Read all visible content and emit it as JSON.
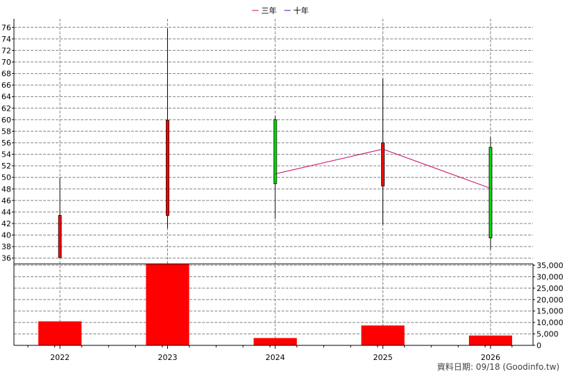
{
  "legend": [
    {
      "label": "三年",
      "color": "#cc0066"
    },
    {
      "label": "十年",
      "color": "#6600cc"
    }
  ],
  "footer": "資料日期: 09/18  (Goodinfo.tw)",
  "chart_data": [
    {
      "type": "candlestick",
      "categories": [
        "2022",
        "2023",
        "2024",
        "2025",
        "2026"
      ],
      "ylim": [
        35,
        77
      ],
      "yticks": [
        36,
        38,
        40,
        42,
        44,
        46,
        48,
        50,
        52,
        54,
        56,
        58,
        60,
        62,
        64,
        66,
        68,
        70,
        72,
        74,
        76
      ],
      "grid": true,
      "candles": [
        {
          "x": "2022",
          "open": 36.1,
          "close": 43.4,
          "high": 50.0,
          "low": 36.1,
          "color": "#ff0000"
        },
        {
          "x": "2023",
          "open": 43.4,
          "close": 59.9,
          "high": 75.8,
          "low": 41.2,
          "color": "#ff0000"
        },
        {
          "x": "2024",
          "open": 60.0,
          "close": 48.9,
          "high": 60.6,
          "low": 42.8,
          "color": "#00dd00"
        },
        {
          "x": "2025",
          "open": 48.5,
          "close": 56.0,
          "high": 67.1,
          "low": 41.8,
          "color": "#ff0000"
        },
        {
          "x": "2026",
          "open": 55.2,
          "close": 39.5,
          "high": 57.0,
          "low": 37.5,
          "color": "#00dd00"
        }
      ],
      "series": [
        {
          "name": "三年",
          "color": "#cc0066",
          "values": [
            null,
            null,
            50.6,
            54.9,
            48.1
          ]
        },
        {
          "name": "十年",
          "color": "#6600cc",
          "values": [
            null,
            null,
            null,
            null,
            null
          ]
        }
      ]
    },
    {
      "type": "bar",
      "categories": [
        "2022",
        "2023",
        "2024",
        "2025",
        "2026"
      ],
      "values": [
        10500,
        35500,
        3200,
        8700,
        4300
      ],
      "color": "#ff0000",
      "ylim": [
        0,
        35000
      ],
      "yticks": [
        0,
        5000,
        10000,
        15000,
        20000,
        25000,
        30000,
        35000
      ],
      "ytick_labels": [
        "0",
        "5,000",
        "10,000",
        "15,000",
        "20,000",
        "25,000",
        "30,000",
        "35,000"
      ],
      "grid": true
    }
  ]
}
